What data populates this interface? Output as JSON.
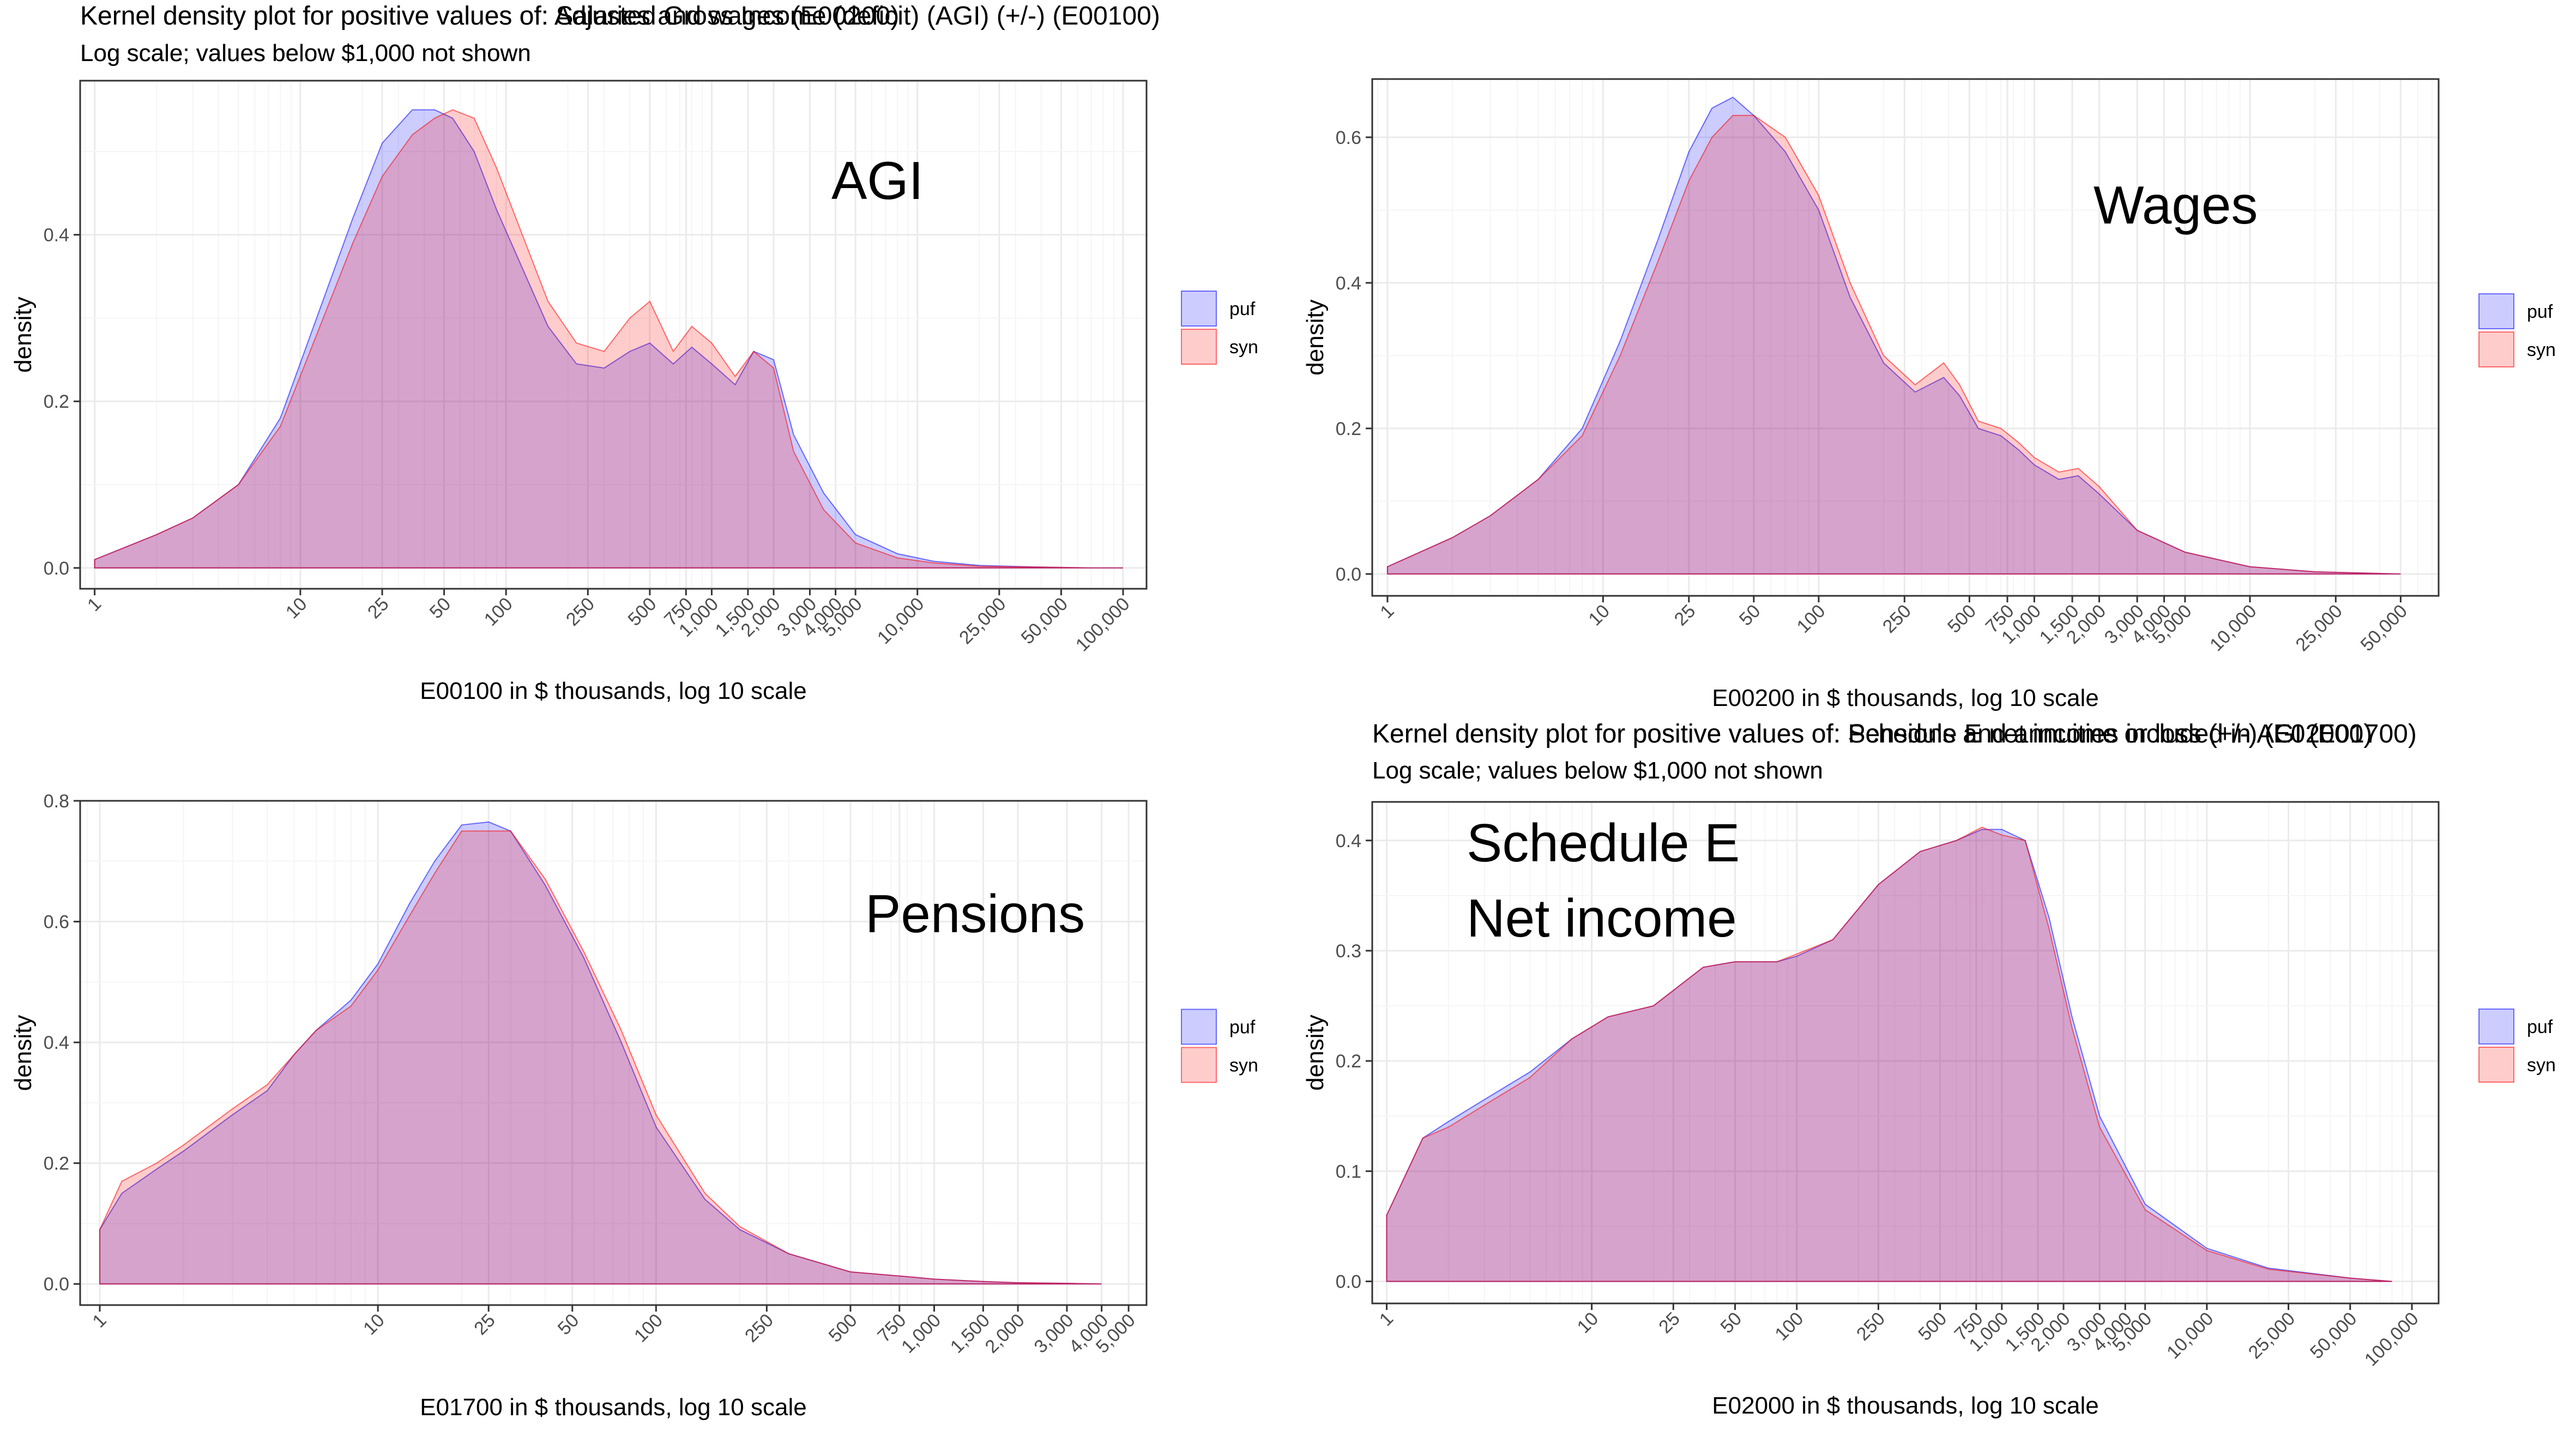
{
  "colors": {
    "puf_fill": "#0000ff",
    "syn_fill": "#ff0000",
    "fill_opacity": 0.2,
    "panel_border": "#333333",
    "grid_major": "#ebebeb",
    "grid_minor": "#f5f5f5"
  },
  "chart_data": [
    {
      "type": "area",
      "title": "Kernel density plot for positive values of: Adjusted Gross Income (deficit)  (AGI)  (+/-) (E00100)",
      "subtitle": "Log scale; values below $1,000 not shown",
      "xlabel": "E00100 in $ thousands, log 10 scale",
      "ylabel": "density",
      "annotation": [
        "AGI"
      ],
      "x_scale": "log10",
      "xlim": [
        0.85,
        130000
      ],
      "ylim": [
        -0.025,
        0.585
      ],
      "yticks": [
        0.0,
        0.2,
        0.4
      ],
      "ytick_labels": [
        "0.0",
        "0.2",
        "0.4"
      ],
      "xticks": [
        1,
        10,
        25,
        50,
        100,
        250,
        500,
        750,
        1000,
        1500,
        2000,
        3000,
        4000,
        5000,
        10000,
        25000,
        50000,
        100000
      ],
      "xtick_labels": [
        "1",
        "10",
        "25",
        "50",
        "100",
        "250",
        "500",
        "750",
        "1,000",
        "1,500",
        "2,000",
        "3,000",
        "4,000",
        "5,000",
        "10,000",
        "25,000",
        "50,000",
        "100,000"
      ],
      "grid": true,
      "legend": {
        "position": "right",
        "entries": [
          "puf",
          "syn"
        ]
      },
      "series": [
        {
          "name": "puf",
          "x": [
            1,
            2,
            3,
            5,
            8,
            12,
            18,
            25,
            35,
            45,
            55,
            70,
            90,
            120,
            160,
            220,
            300,
            400,
            500,
            650,
            800,
            1000,
            1300,
            1600,
            2000,
            2500,
            3500,
            5000,
            8000,
            12000,
            20000,
            40000,
            70000,
            100000
          ],
          "y": [
            0.01,
            0.04,
            0.06,
            0.1,
            0.18,
            0.3,
            0.42,
            0.51,
            0.55,
            0.55,
            0.54,
            0.5,
            0.43,
            0.36,
            0.29,
            0.245,
            0.24,
            0.26,
            0.27,
            0.245,
            0.265,
            0.245,
            0.22,
            0.26,
            0.25,
            0.16,
            0.09,
            0.04,
            0.017,
            0.008,
            0.003,
            0.001,
            0.0,
            0.0
          ]
        },
        {
          "name": "syn",
          "x": [
            1,
            2,
            3,
            5,
            8,
            12,
            18,
            25,
            35,
            45,
            55,
            70,
            90,
            120,
            160,
            220,
            300,
            400,
            500,
            650,
            800,
            1000,
            1300,
            1600,
            2000,
            2500,
            3500,
            5000,
            8000,
            12000,
            20000,
            40000,
            70000,
            100000
          ],
          "y": [
            0.01,
            0.04,
            0.06,
            0.1,
            0.17,
            0.28,
            0.39,
            0.47,
            0.52,
            0.54,
            0.55,
            0.54,
            0.48,
            0.4,
            0.32,
            0.27,
            0.26,
            0.3,
            0.32,
            0.26,
            0.29,
            0.27,
            0.23,
            0.26,
            0.24,
            0.14,
            0.07,
            0.03,
            0.012,
            0.006,
            0.002,
            0.001,
            0.0,
            0.0
          ]
        }
      ]
    },
    {
      "type": "area",
      "title": "Kernel density plot for positive values of: Salaries and wages (E00200)",
      "subtitle": "Log scale; values below $1,000 not shown",
      "xlabel": "E00200 in $ thousands, log 10 scale",
      "ylabel": "density",
      "annotation": [
        "Wages"
      ],
      "x_scale": "log10",
      "xlim": [
        0.85,
        75000
      ],
      "ylim": [
        -0.03,
        0.68
      ],
      "yticks": [
        0.0,
        0.2,
        0.4,
        0.6
      ],
      "ytick_labels": [
        "0.0",
        "0.2",
        "0.4",
        "0.6"
      ],
      "xticks": [
        1,
        10,
        25,
        50,
        100,
        250,
        500,
        750,
        1000,
        1500,
        2000,
        3000,
        4000,
        5000,
        10000,
        25000,
        50000
      ],
      "xtick_labels": [
        "1",
        "10",
        "25",
        "50",
        "100",
        "250",
        "500",
        "750",
        "1,000",
        "1,500",
        "2,000",
        "3,000",
        "4,000",
        "5,000",
        "10,000",
        "25,000",
        "50,000"
      ],
      "grid": true,
      "legend": {
        "position": "right",
        "entries": [
          "puf",
          "syn"
        ]
      },
      "series": [
        {
          "name": "puf",
          "x": [
            1,
            2,
            3,
            5,
            8,
            12,
            18,
            25,
            32,
            40,
            50,
            70,
            100,
            140,
            200,
            280,
            380,
            450,
            550,
            700,
            850,
            1000,
            1300,
            1600,
            2000,
            3000,
            5000,
            10000,
            20000,
            50000
          ],
          "y": [
            0.01,
            0.05,
            0.08,
            0.13,
            0.2,
            0.32,
            0.46,
            0.58,
            0.64,
            0.655,
            0.63,
            0.58,
            0.5,
            0.38,
            0.29,
            0.25,
            0.27,
            0.245,
            0.2,
            0.19,
            0.17,
            0.15,
            0.13,
            0.135,
            0.11,
            0.06,
            0.03,
            0.01,
            0.003,
            0.0
          ]
        },
        {
          "name": "syn",
          "x": [
            1,
            2,
            3,
            5,
            8,
            12,
            18,
            25,
            32,
            40,
            50,
            70,
            100,
            140,
            200,
            280,
            380,
            450,
            550,
            700,
            850,
            1000,
            1300,
            1600,
            2000,
            3000,
            5000,
            10000,
            20000,
            50000
          ],
          "y": [
            0.01,
            0.05,
            0.08,
            0.13,
            0.19,
            0.3,
            0.43,
            0.54,
            0.6,
            0.63,
            0.63,
            0.6,
            0.52,
            0.4,
            0.3,
            0.26,
            0.29,
            0.26,
            0.21,
            0.2,
            0.18,
            0.16,
            0.14,
            0.145,
            0.12,
            0.06,
            0.03,
            0.01,
            0.003,
            0.0
          ]
        }
      ]
    },
    {
      "type": "area",
      "title": "Kernel density plot for positive values of: Pensions and annuities included in AGI (E01700)",
      "subtitle": "Log scale; values below $1,000 not shown",
      "xlabel": "E01700 in $ thousands, log 10 scale",
      "ylabel": "density",
      "annotation": [
        "Pensions"
      ],
      "x_scale": "log10",
      "xlim": [
        0.85,
        5800
      ],
      "ylim": [
        -0.035,
        0.8
      ],
      "yticks": [
        0.0,
        0.2,
        0.4,
        0.6,
        0.8
      ],
      "ytick_labels": [
        "0.0",
        "0.2",
        "0.4",
        "0.6",
        "0.8"
      ],
      "xticks": [
        1,
        10,
        25,
        50,
        100,
        250,
        500,
        750,
        1000,
        1500,
        2000,
        3000,
        4000,
        5000
      ],
      "xtick_labels": [
        "1",
        "10",
        "25",
        "50",
        "100",
        "250",
        "500",
        "750",
        "1,000",
        "1,500",
        "2,000",
        "3,000",
        "4,000",
        "5,000"
      ],
      "grid": true,
      "legend": {
        "position": "right",
        "entries": [
          "puf",
          "syn"
        ]
      },
      "series": [
        {
          "name": "puf",
          "x": [
            1,
            1.2,
            1.6,
            2,
            3,
            4,
            5,
            6,
            8,
            10,
            13,
            16,
            20,
            25,
            30,
            40,
            55,
            75,
            100,
            150,
            200,
            300,
            500,
            800,
            1000,
            1500,
            2000,
            3000,
            4000
          ],
          "y": [
            0.09,
            0.15,
            0.19,
            0.22,
            0.28,
            0.32,
            0.38,
            0.42,
            0.47,
            0.53,
            0.63,
            0.7,
            0.76,
            0.765,
            0.75,
            0.66,
            0.54,
            0.4,
            0.26,
            0.14,
            0.09,
            0.05,
            0.02,
            0.012,
            0.008,
            0.004,
            0.002,
            0.001,
            0.0
          ]
        },
        {
          "name": "syn",
          "x": [
            1,
            1.2,
            1.6,
            2,
            3,
            4,
            5,
            6,
            8,
            10,
            13,
            16,
            20,
            25,
            30,
            40,
            55,
            75,
            100,
            150,
            200,
            300,
            500,
            800,
            1000,
            1500,
            2000,
            3000,
            4000
          ],
          "y": [
            0.09,
            0.17,
            0.2,
            0.23,
            0.29,
            0.33,
            0.38,
            0.42,
            0.46,
            0.52,
            0.61,
            0.68,
            0.75,
            0.75,
            0.75,
            0.67,
            0.55,
            0.42,
            0.28,
            0.15,
            0.095,
            0.05,
            0.02,
            0.012,
            0.008,
            0.004,
            0.002,
            0.001,
            0.0
          ]
        }
      ]
    },
    {
      "type": "area",
      "title": "Kernel density plot for positive values of: Schedule E net income or loss (+/-) (E02000)",
      "subtitle": "Log scale; values below $1,000 not shown",
      "xlabel": "E02000 in $ thousands, log 10 scale",
      "ylabel": "density",
      "annotation": [
        "Schedule E",
        "Net income"
      ],
      "x_scale": "log10",
      "xlim": [
        0.85,
        135000
      ],
      "ylim": [
        -0.02,
        0.435
      ],
      "yticks": [
        0.0,
        0.1,
        0.2,
        0.3,
        0.4
      ],
      "ytick_labels": [
        "0.0",
        "0.1",
        "0.2",
        "0.3",
        "0.4"
      ],
      "xticks": [
        1,
        10,
        25,
        50,
        100,
        250,
        500,
        750,
        1000,
        1500,
        2000,
        3000,
        4000,
        5000,
        10000,
        25000,
        50000,
        100000
      ],
      "xtick_labels": [
        "1",
        "10",
        "25",
        "50",
        "100",
        "250",
        "500",
        "750",
        "1,000",
        "1,500",
        "2,000",
        "3,000",
        "4,000",
        "5,000",
        "10,000",
        "25,000",
        "50,000",
        "100,000"
      ],
      "grid": true,
      "legend": {
        "position": "right",
        "entries": [
          "puf",
          "syn"
        ]
      },
      "series": [
        {
          "name": "puf",
          "x": [
            1,
            1.5,
            2,
            3,
            5,
            8,
            12,
            20,
            35,
            50,
            80,
            100,
            150,
            250,
            400,
            600,
            800,
            1000,
            1300,
            1700,
            2200,
            3000,
            5000,
            10000,
            20000,
            50000,
            80000
          ],
          "y": [
            0.06,
            0.13,
            0.145,
            0.165,
            0.19,
            0.22,
            0.24,
            0.25,
            0.285,
            0.29,
            0.29,
            0.295,
            0.31,
            0.36,
            0.39,
            0.4,
            0.41,
            0.41,
            0.4,
            0.33,
            0.24,
            0.15,
            0.07,
            0.03,
            0.012,
            0.003,
            0.0
          ]
        },
        {
          "name": "syn",
          "x": [
            1,
            1.5,
            2,
            3,
            5,
            8,
            12,
            20,
            35,
            50,
            80,
            100,
            150,
            250,
            400,
            600,
            800,
            1000,
            1300,
            1700,
            2200,
            3000,
            5000,
            10000,
            20000,
            50000,
            80000
          ],
          "y": [
            0.06,
            0.13,
            0.14,
            0.16,
            0.185,
            0.22,
            0.24,
            0.25,
            0.285,
            0.29,
            0.29,
            0.297,
            0.31,
            0.36,
            0.39,
            0.4,
            0.412,
            0.405,
            0.4,
            0.32,
            0.23,
            0.14,
            0.065,
            0.028,
            0.011,
            0.003,
            0.0
          ]
        }
      ]
    }
  ]
}
